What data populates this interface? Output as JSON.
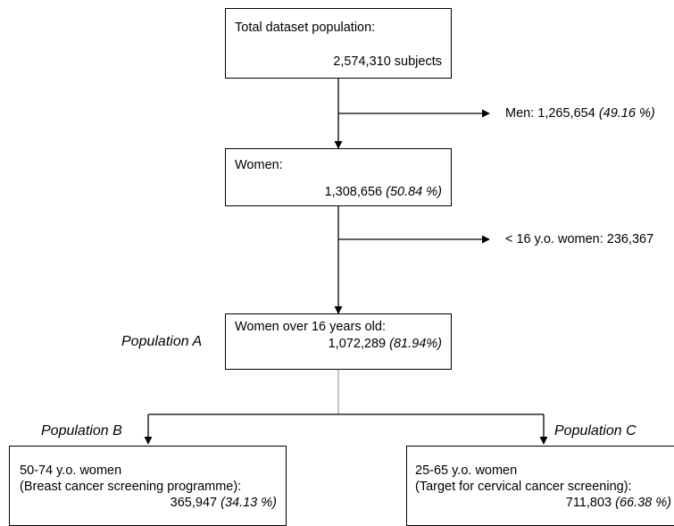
{
  "total": {
    "label": "Total dataset population:",
    "value": "2,574,310 subjects"
  },
  "men": {
    "label": "Men: 1,265,654",
    "pct": "(49.16 %)"
  },
  "women": {
    "label": "Women:",
    "value": "1,308,656",
    "pct": "(50.84 %)"
  },
  "under16": {
    "label": "< 16 y.o. women: 236,367"
  },
  "over16": {
    "label": "Women over 16 years old:",
    "value": "1,072,289",
    "pct": "(81.94%)"
  },
  "popA": "Population A",
  "popB": "Population B",
  "popC": "Population C",
  "breast": {
    "line1": "50-74 y.o. women",
    "line2": "(Breast cancer screening programme):",
    "value": "365,947",
    "pct": "(34.13 %)"
  },
  "cervical": {
    "line1": "25-65 y.o. women",
    "line2": "(Target for cervical cancer screening):",
    "value": "711,803",
    "pct": "(66.38 %)"
  }
}
